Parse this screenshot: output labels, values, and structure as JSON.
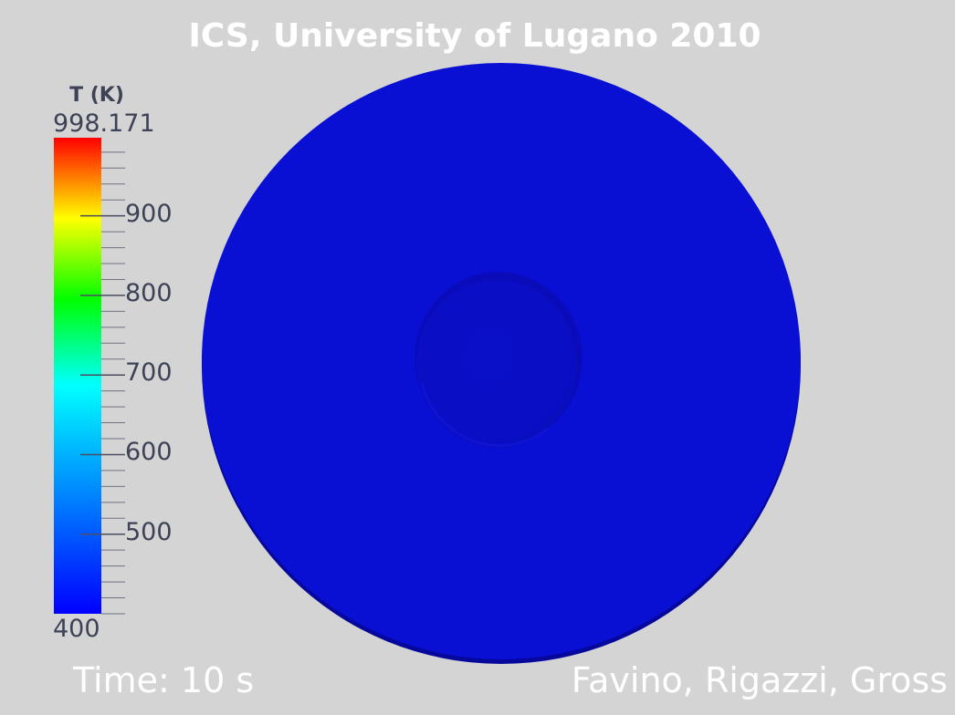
{
  "title": "ICS, University of Lugano 2010",
  "colorbar": {
    "label": "T (K)",
    "max_label": "998.171",
    "min_label": "400",
    "min_value": 400,
    "max_value": 998.171,
    "ticks": [
      {
        "value": 500,
        "label": "500"
      },
      {
        "value": 600,
        "label": "600"
      },
      {
        "value": 700,
        "label": "700"
      },
      {
        "value": 800,
        "label": "800"
      },
      {
        "value": 900,
        "label": "900"
      }
    ],
    "colormap_name": "rainbow",
    "text_color": "#3d4256"
  },
  "time": {
    "label": "Time:",
    "value": "10 s"
  },
  "credits": "Favino, Rigazzi, Gross",
  "colors": {
    "background": "#d4d4d4",
    "disk_fill": "#0a0fd4",
    "disk_rim": "#060aa0",
    "inner_disk": "#0a0ec6",
    "title_color": "#ffffff"
  }
}
